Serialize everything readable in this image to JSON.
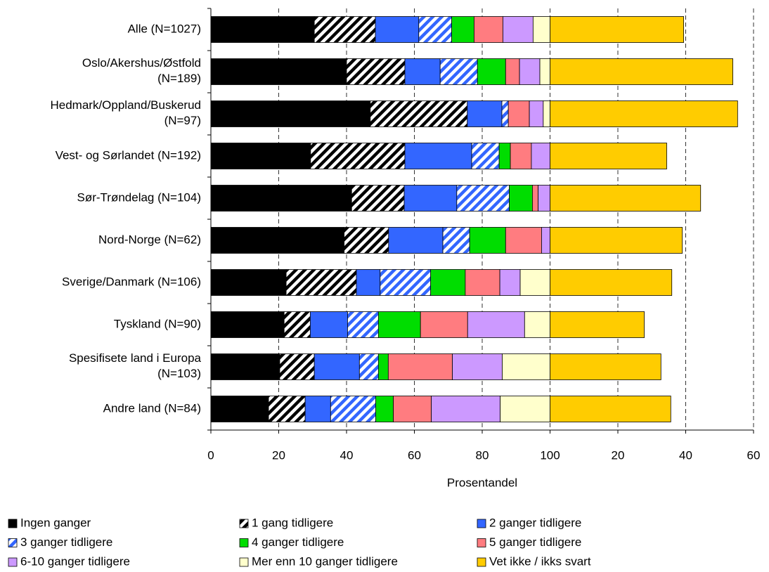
{
  "chart_data": {
    "type": "stacked-bar-horizontal",
    "x_label": "Prosentandel",
    "categories": [
      "Alle (N=1027)",
      "Oslo/Akershus/Østfold\n(N=189)",
      "Hedmark/Oppland/Buskerud\n(N=97)",
      "Vest- og Sørlandet (N=192)",
      "Sør-Trøndelag (N=104)",
      "Nord-Norge (N=62)",
      "Sverige/Danmark (N=106)",
      "Tyskland (N=90)",
      "Spesifisete land i Europa\n(N=103)",
      "Andre land (N=84)"
    ],
    "series": [
      {
        "name": "Ingen ganger",
        "color": "#000000",
        "values": [
          30.5,
          40.0,
          47.0,
          29.4,
          41.5,
          39.3,
          22.2,
          21.6,
          20.3,
          17.0
        ]
      },
      {
        "name": "1 gang tidligere",
        "color": "#000000",
        "pattern": "hatch",
        "values": [
          18.0,
          17.2,
          28.6,
          27.8,
          15.5,
          13.1,
          20.7,
          7.7,
          10.2,
          10.8
        ]
      },
      {
        "name": "2 ganger tidligere",
        "color": "#3366FF",
        "values": [
          12.8,
          10.4,
          10.2,
          19.7,
          15.5,
          16.0,
          7.0,
          11.0,
          13.3,
          7.5
        ]
      },
      {
        "name": "3 ganger tidligere",
        "color": "#3366FF",
        "pattern": "hatch",
        "values": [
          9.7,
          11.0,
          1.9,
          8.1,
          15.5,
          7.9,
          14.9,
          9.1,
          5.6,
          13.3
        ]
      },
      {
        "name": "4 ganger tidligere",
        "color": "#00DD00",
        "values": [
          6.6,
          8.3,
          0,
          3.3,
          6.8,
          10.6,
          10.2,
          12.4,
          2.9,
          5.2
        ]
      },
      {
        "name": "5 ganger tidligere",
        "color": "#FF7C80",
        "values": [
          8.5,
          4.1,
          6.2,
          6.2,
          1.7,
          10.6,
          10.2,
          13.9,
          18.9,
          11.2
        ]
      },
      {
        "name": "6-10 ganger tidligere",
        "color": "#CC99FF",
        "values": [
          8.9,
          6.0,
          4.1,
          5.5,
          3.5,
          2.5,
          6.0,
          16.8,
          14.7,
          20.3
        ]
      },
      {
        "name": "Mer enn 10 ganger tidligere",
        "color": "#FFFFCC",
        "values": [
          5.0,
          3.0,
          2.0,
          0,
          0,
          0,
          8.8,
          7.5,
          14.1,
          14.7
        ]
      },
      {
        "name": "Vet ikke  / ikks svart",
        "color": "#FFCC00",
        "values": [
          39.4,
          53.9,
          55.3,
          34.4,
          44.4,
          39.0,
          35.9,
          27.8,
          32.7,
          35.6
        ]
      }
    ],
    "xlim": [
      0,
      160
    ],
    "xticks": [
      0,
      20,
      40,
      60,
      80,
      100,
      {
        "value": 120,
        "label": "20"
      },
      {
        "value": 140,
        "label": "40"
      },
      {
        "value": 160,
        "label": "60"
      }
    ],
    "grid": true
  }
}
